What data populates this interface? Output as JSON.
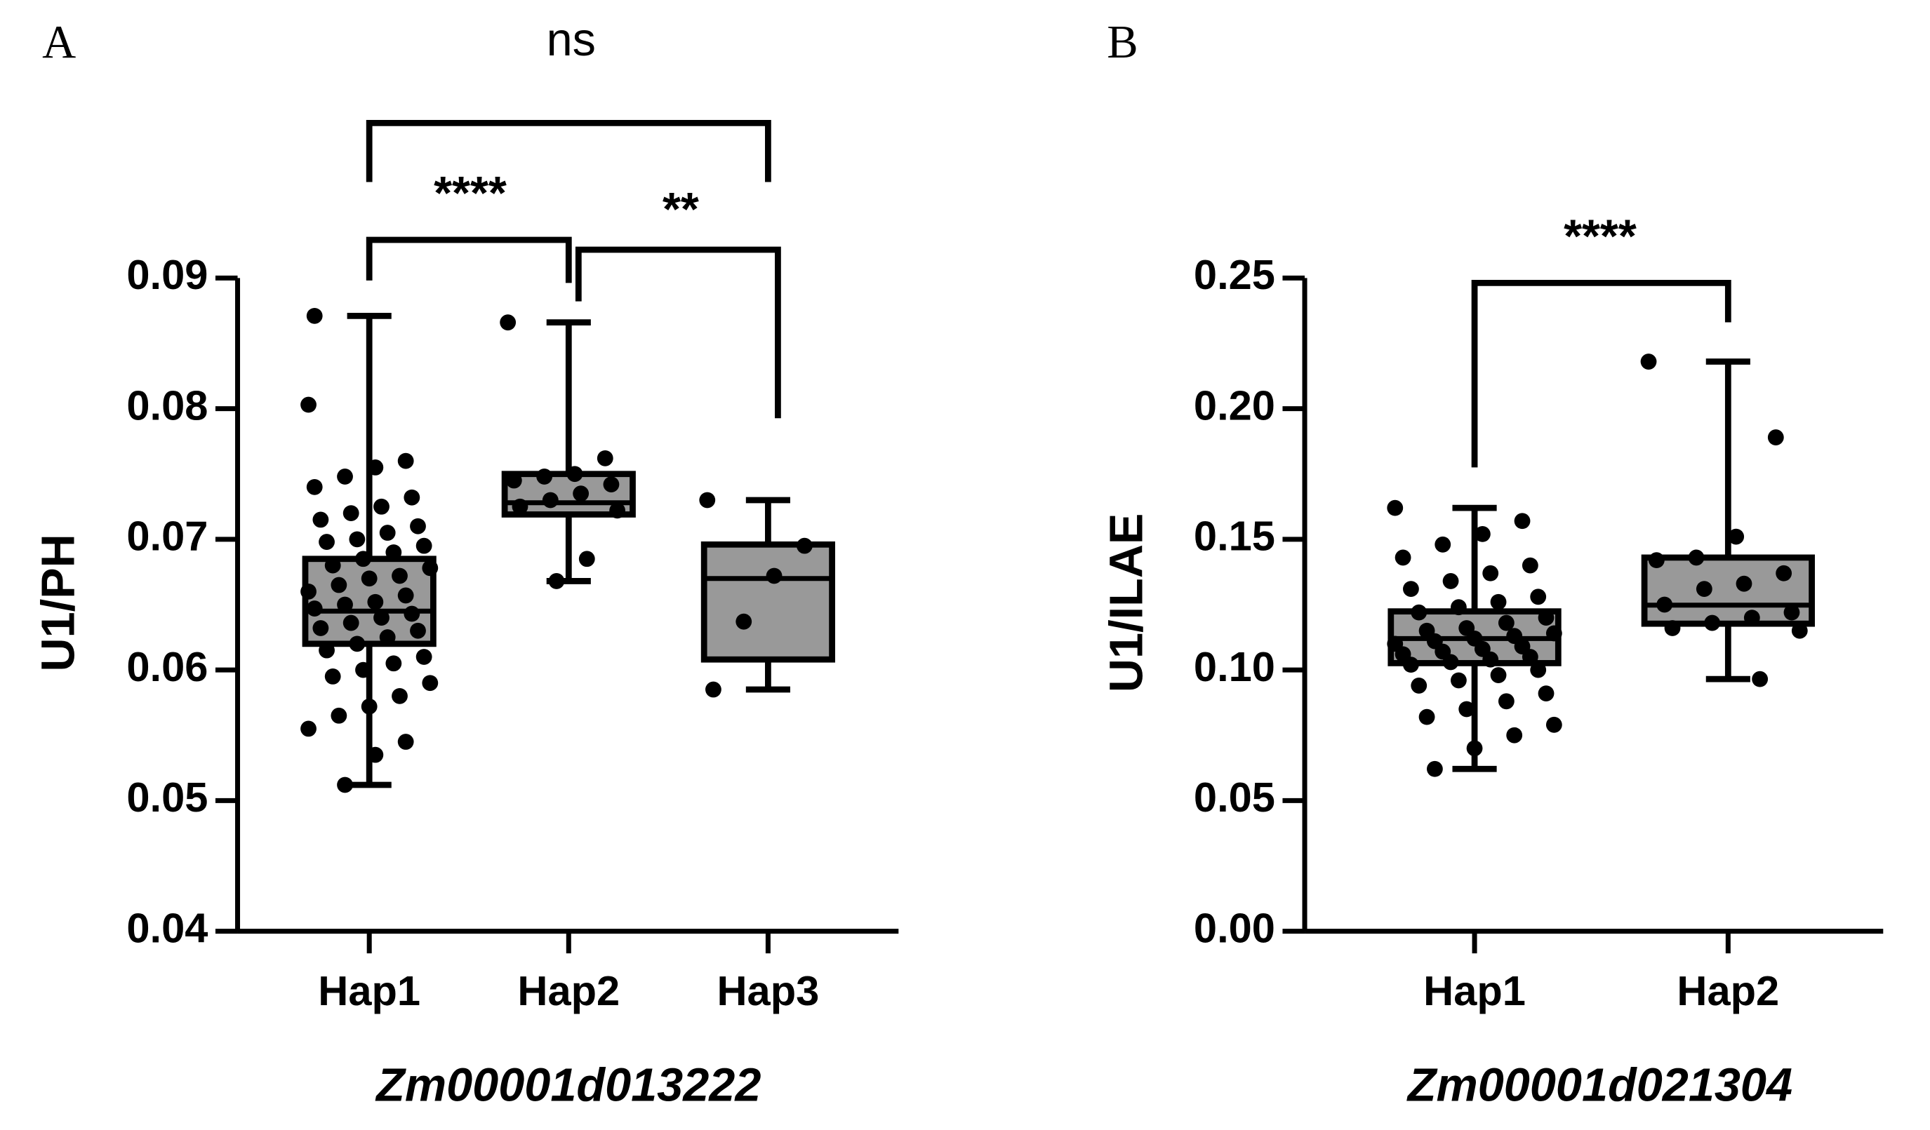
{
  "chart_data": [
    {
      "type": "box",
      "panel_label": "A",
      "ylabel": "U1/PH",
      "xlabel": "Zm00001d013222",
      "categories": [
        "Hap1",
        "Hap2",
        "Hap3"
      ],
      "ylim": [
        0.04,
        0.09
      ],
      "yticks": [
        0.04,
        0.05,
        0.06,
        0.07,
        0.08,
        0.09
      ],
      "box_color": "#999999",
      "boxes": [
        {
          "min": 0.0512,
          "q1": 0.062,
          "median": 0.0645,
          "q3": 0.0685,
          "max": 0.0871,
          "points": [
            0.0803,
            0.076,
            0.0755,
            0.0748,
            0.074,
            0.0732,
            0.0725,
            0.072,
            0.0715,
            0.071,
            0.0705,
            0.07,
            0.0698,
            0.0695,
            0.069,
            0.0685,
            0.068,
            0.0678,
            0.0672,
            0.067,
            0.0665,
            0.066,
            0.0657,
            0.0652,
            0.065,
            0.0647,
            0.0643,
            0.064,
            0.0636,
            0.0632,
            0.063,
            0.0625,
            0.062,
            0.0615,
            0.061,
            0.0605,
            0.06,
            0.0595,
            0.059,
            0.058,
            0.0572,
            0.0565,
            0.0555,
            0.0545,
            0.0535,
            0.0512,
            0.0871
          ]
        },
        {
          "min": 0.0668,
          "q1": 0.0719,
          "median": 0.0728,
          "q3": 0.075,
          "max": 0.0866,
          "points": [
            0.0866,
            0.0762,
            0.075,
            0.0748,
            0.0745,
            0.0742,
            0.0735,
            0.073,
            0.0725,
            0.0722,
            0.0685,
            0.0668
          ]
        },
        {
          "min": 0.0585,
          "q1": 0.0608,
          "median": 0.067,
          "q3": 0.0696,
          "max": 0.073,
          "points": [
            0.073,
            0.0695,
            0.0672,
            0.0637,
            0.0585
          ]
        }
      ],
      "comparisons": [
        {
          "from": 0,
          "to": 2,
          "label": "ns"
        },
        {
          "from": 0,
          "to": 1,
          "label": "****"
        },
        {
          "from": 1,
          "to": 2,
          "label": "**"
        }
      ]
    },
    {
      "type": "box",
      "panel_label": "B",
      "ylabel": "U1/ILAE",
      "xlabel": "Zm00001d021304",
      "categories": [
        "Hap1",
        "Hap2"
      ],
      "ylim": [
        0,
        0.25
      ],
      "yticks": [
        {
          "value": 0,
          "label": "0.00"
        },
        0.05,
        {
          "value": 0.1,
          "label": "0.10"
        },
        0.15,
        {
          "value": 0.2,
          "label": "0.20"
        },
        0.25
      ],
      "box_color": "#999999",
      "boxes": [
        {
          "min": 0.0621,
          "q1": 0.1026,
          "median": 0.112,
          "q3": 0.1224,
          "max": 0.162,
          "points": [
            0.162,
            0.157,
            0.152,
            0.148,
            0.143,
            0.14,
            0.137,
            0.134,
            0.131,
            0.128,
            0.126,
            0.124,
            0.122,
            0.12,
            0.118,
            0.116,
            0.115,
            0.114,
            0.113,
            0.112,
            0.111,
            0.11,
            0.109,
            0.108,
            0.107,
            0.106,
            0.105,
            0.104,
            0.103,
            0.102,
            0.1,
            0.098,
            0.096,
            0.094,
            0.091,
            0.088,
            0.085,
            0.082,
            0.079,
            0.075,
            0.07,
            0.0621
          ]
        },
        {
          "min": 0.0965,
          "q1": 0.1177,
          "median": 0.1248,
          "q3": 0.143,
          "max": 0.218,
          "points": [
            0.218,
            0.189,
            0.151,
            0.143,
            0.142,
            0.137,
            0.133,
            0.131,
            0.125,
            0.122,
            0.12,
            0.118,
            0.116,
            0.115,
            0.0965
          ]
        }
      ],
      "comparisons": [
        {
          "from": 0,
          "to": 1,
          "label": "****"
        }
      ]
    }
  ]
}
